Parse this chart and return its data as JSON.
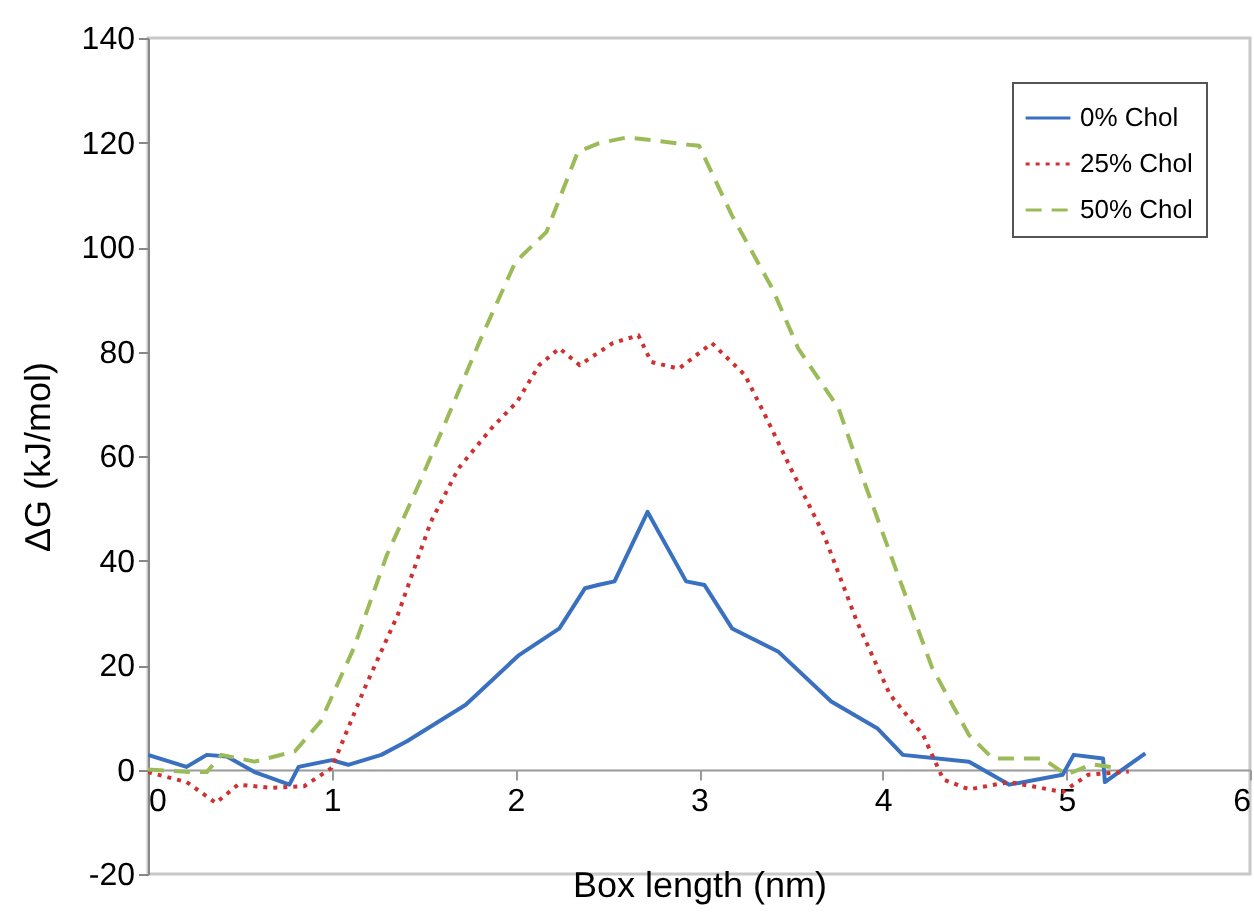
{
  "chart_data": {
    "type": "line",
    "xlabel": "Box length (nm)",
    "ylabel": "ΔG (kJ/mol)",
    "xlim": [
      0,
      6
    ],
    "xticks": [
      0,
      1,
      2,
      3,
      4,
      5,
      6
    ],
    "ylim": [
      -20,
      140
    ],
    "yticks": [
      -20,
      0,
      20,
      40,
      60,
      80,
      100,
      120,
      140
    ],
    "legend": "top right",
    "series": [
      {
        "name": "0% Chol",
        "color": "#3a70c0",
        "line_style": "solid",
        "x": [
          0,
          0.21,
          0.32,
          0.43,
          0.58,
          0.77,
          0.82,
          1.0,
          1.09,
          1.27,
          1.41,
          1.73,
          2.02,
          2.24,
          2.38,
          2.45,
          2.54,
          2.72,
          2.93,
          3.03,
          3.11,
          3.18,
          3.43,
          3.72,
          3.97,
          4.11,
          4.47,
          4.69,
          4.98,
          5.04,
          5.2,
          5.21,
          5.43
        ],
        "values": [
          2.8,
          0.5,
          2.8,
          2.5,
          -0.5,
          -2.9,
          0.5,
          1.8,
          0.9,
          2.8,
          5.4,
          12.4,
          21.9,
          27,
          34.7,
          35.3,
          36,
          49.3,
          36,
          35.3,
          30.9,
          27,
          22.6,
          13,
          7.9,
          2.8,
          1.5,
          -2.9,
          -1,
          2.8,
          2.1,
          -2.4,
          3.1
        ]
      },
      {
        "name": "25% Chol",
        "color": "#d03030",
        "line_style": "dotted",
        "x": [
          0,
          0.21,
          0.37,
          0.49,
          0.67,
          0.85,
          1.0,
          1.18,
          1.36,
          1.54,
          1.69,
          1.87,
          2.01,
          2.13,
          2.24,
          2.35,
          2.53,
          2.67,
          2.74,
          2.89,
          3.07,
          3.25,
          3.36,
          3.5,
          3.68,
          3.86,
          4.04,
          4.22,
          4.33,
          4.47,
          4.69,
          4.98,
          5.12,
          5.34
        ],
        "values": [
          -0.5,
          -2.4,
          -6.4,
          -2.9,
          -3.5,
          -3.2,
          0.3,
          15.6,
          29.6,
          47.4,
          57.6,
          65.3,
          70.4,
          77.4,
          80.6,
          77.4,
          81.6,
          83.1,
          78,
          76.7,
          81.6,
          75.5,
          67.8,
          57.6,
          44.9,
          28.3,
          14.3,
          6.6,
          -1.9,
          -3.8,
          -2.4,
          -4.3,
          -1,
          -0.4
        ]
      },
      {
        "name": "50% Chol",
        "color": "#9bbb59",
        "line_style": "dashed",
        "x": [
          0,
          0.25,
          0.32,
          0.4,
          0.58,
          0.8,
          0.94,
          1.12,
          1.3,
          1.48,
          1.59,
          1.82,
          2.0,
          2.17,
          2.34,
          2.45,
          2.61,
          2.96,
          3.0,
          3.18,
          3.4,
          3.54,
          3.76,
          3.9,
          4.07,
          4.27,
          4.47,
          4.6,
          4.87,
          5.0,
          5.14,
          5.28
        ],
        "values": [
          0,
          -0.5,
          -0.5,
          2.8,
          1.5,
          3.5,
          9.2,
          23.2,
          41,
          55,
          64,
          83.1,
          97.1,
          102.9,
          118.2,
          119.8,
          121,
          119.5,
          119.4,
          106,
          92,
          80.6,
          69.1,
          55,
          38.5,
          19.4,
          6.6,
          2.1,
          2.1,
          -1,
          1,
          0.3
        ]
      }
    ]
  }
}
